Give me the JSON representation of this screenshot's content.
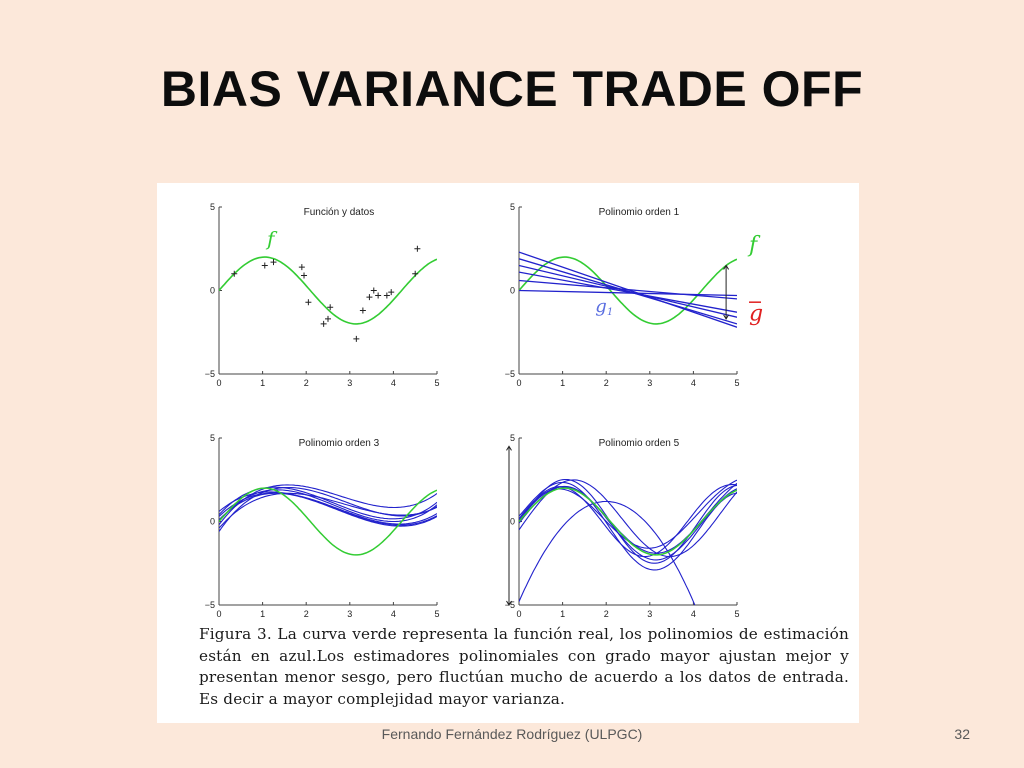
{
  "slide": {
    "title": "BIAS VARIANCE TRADE OFF",
    "footer": "Fernando Fernández Rodríguez (ULPGC)",
    "page_number": "32"
  },
  "figure": {
    "caption": "Figura 3. La curva verde representa la función real, los polinomios de estimación están en azul.Los estimadores polinomiales con grado mayor ajustan mejor y presentan menor sesgo, pero fluctúan mucho de acuerdo a los datos de entrada. Es decir a mayor complejidad mayor varianza.",
    "colors": {
      "true_function": "#33cc33",
      "estimators": "#2222cc",
      "mean_estimator": "#e02020"
    }
  },
  "chart_data": [
    {
      "type": "scatter",
      "title": "Función y datos",
      "xlim": [
        0,
        5
      ],
      "ylim": [
        -5,
        5
      ],
      "x_ticks": [
        "0",
        "1",
        "2",
        "3",
        "4",
        "5"
      ],
      "y_ticks": [
        "5",
        "0",
        "−5"
      ],
      "annotations": [
        "f"
      ],
      "true_function": "2*sin(1.5x)",
      "points": [
        [
          0.35,
          1.0
        ],
        [
          1.05,
          1.5
        ],
        [
          1.25,
          1.7
        ],
        [
          1.9,
          1.4
        ],
        [
          1.95,
          0.9
        ],
        [
          2.05,
          -0.7
        ],
        [
          2.4,
          -2.0
        ],
        [
          2.5,
          -1.7
        ],
        [
          2.55,
          -1.0
        ],
        [
          3.15,
          -2.9
        ],
        [
          3.3,
          -1.2
        ],
        [
          3.45,
          -0.4
        ],
        [
          3.55,
          0.0
        ],
        [
          3.65,
          -0.3
        ],
        [
          3.85,
          -0.3
        ],
        [
          3.95,
          -0.1
        ],
        [
          4.5,
          1.0
        ],
        [
          4.55,
          2.5
        ]
      ]
    },
    {
      "type": "line",
      "title": "Polinomio orden 1",
      "xlim": [
        0,
        5
      ],
      "ylim": [
        -5,
        5
      ],
      "x_ticks": [
        "0",
        "1",
        "2",
        "3",
        "4",
        "5"
      ],
      "y_ticks": [
        "5",
        "0",
        "−5"
      ],
      "annotations": [
        "f",
        "g",
        "g1"
      ],
      "series": [
        {
          "values": [
            [
              0,
              2.3
            ],
            [
              5,
              -2.2
            ]
          ]
        },
        {
          "values": [
            [
              0,
              1.9
            ],
            [
              5,
              -2.0
            ]
          ]
        },
        {
          "values": [
            [
              0,
              1.5
            ],
            [
              5,
              -1.6
            ]
          ]
        },
        {
          "values": [
            [
              0,
              1.1
            ],
            [
              5,
              -1.3
            ]
          ]
        },
        {
          "values": [
            [
              0,
              0.6
            ],
            [
              5,
              -0.5
            ]
          ]
        },
        {
          "values": [
            [
              0,
              0.0
            ],
            [
              5,
              -0.3
            ]
          ]
        }
      ]
    },
    {
      "type": "line",
      "title": "Polinomio orden 3",
      "xlim": [
        0,
        5
      ],
      "ylim": [
        -5,
        5
      ],
      "x_ticks": [
        "0",
        "1",
        "2",
        "3",
        "4",
        "5"
      ],
      "y_ticks": [
        "5",
        "0",
        "−5"
      ],
      "series": [
        {
          "coeffs": [
            -0.6,
            3.8,
            -1.65,
            0.19
          ]
        },
        {
          "coeffs": [
            0.3,
            2.5,
            -1.3,
            0.16
          ]
        },
        {
          "coeffs": [
            0.0,
            3.2,
            -1.6,
            0.2
          ]
        },
        {
          "coeffs": [
            0.6,
            2.2,
            -1.2,
            0.15
          ]
        },
        {
          "coeffs": [
            -0.2,
            3.5,
            -1.55,
            0.185
          ]
        },
        {
          "coeffs": [
            0.4,
            2.9,
            -1.5,
            0.19
          ]
        },
        {
          "coeffs": [
            0.1,
            2.7,
            -1.35,
            0.165
          ]
        },
        {
          "coeffs": [
            -0.4,
            3.0,
            -1.3,
            0.15
          ]
        }
      ]
    },
    {
      "type": "line",
      "title": "Polinomio orden 5",
      "xlim": [
        0,
        5
      ],
      "ylim": [
        -5,
        5
      ],
      "x_ticks": [
        "0",
        "1",
        "2",
        "3",
        "4",
        "5"
      ],
      "y_ticks": [
        "5",
        "0",
        "−5"
      ],
      "series": [
        {
          "amp": 2.2,
          "freq": 1.5,
          "shift": 0.0,
          "bias": -0.1,
          "tail": 0.0
        },
        {
          "amp": 2.0,
          "freq": 1.45,
          "shift": 0.15,
          "bias": 0.1,
          "tail": 0.8
        },
        {
          "amp": 2.5,
          "freq": 1.55,
          "shift": -0.1,
          "bias": 0.0,
          "tail": -0.6
        },
        {
          "amp": 1.8,
          "freq": 1.5,
          "shift": 0.25,
          "bias": 0.2,
          "tail": 1.0
        },
        {
          "amp": 2.6,
          "freq": 1.5,
          "shift": 0.05,
          "bias": -0.3,
          "tail": -1.0
        },
        {
          "amp": 2.1,
          "freq": 1.6,
          "shift": 0.1,
          "bias": 0.0,
          "tail": 0.3
        },
        {
          "amp": 2.3,
          "freq": 1.42,
          "shift": -0.2,
          "bias": 0.2,
          "tail": 0.5
        }
      ]
    }
  ]
}
